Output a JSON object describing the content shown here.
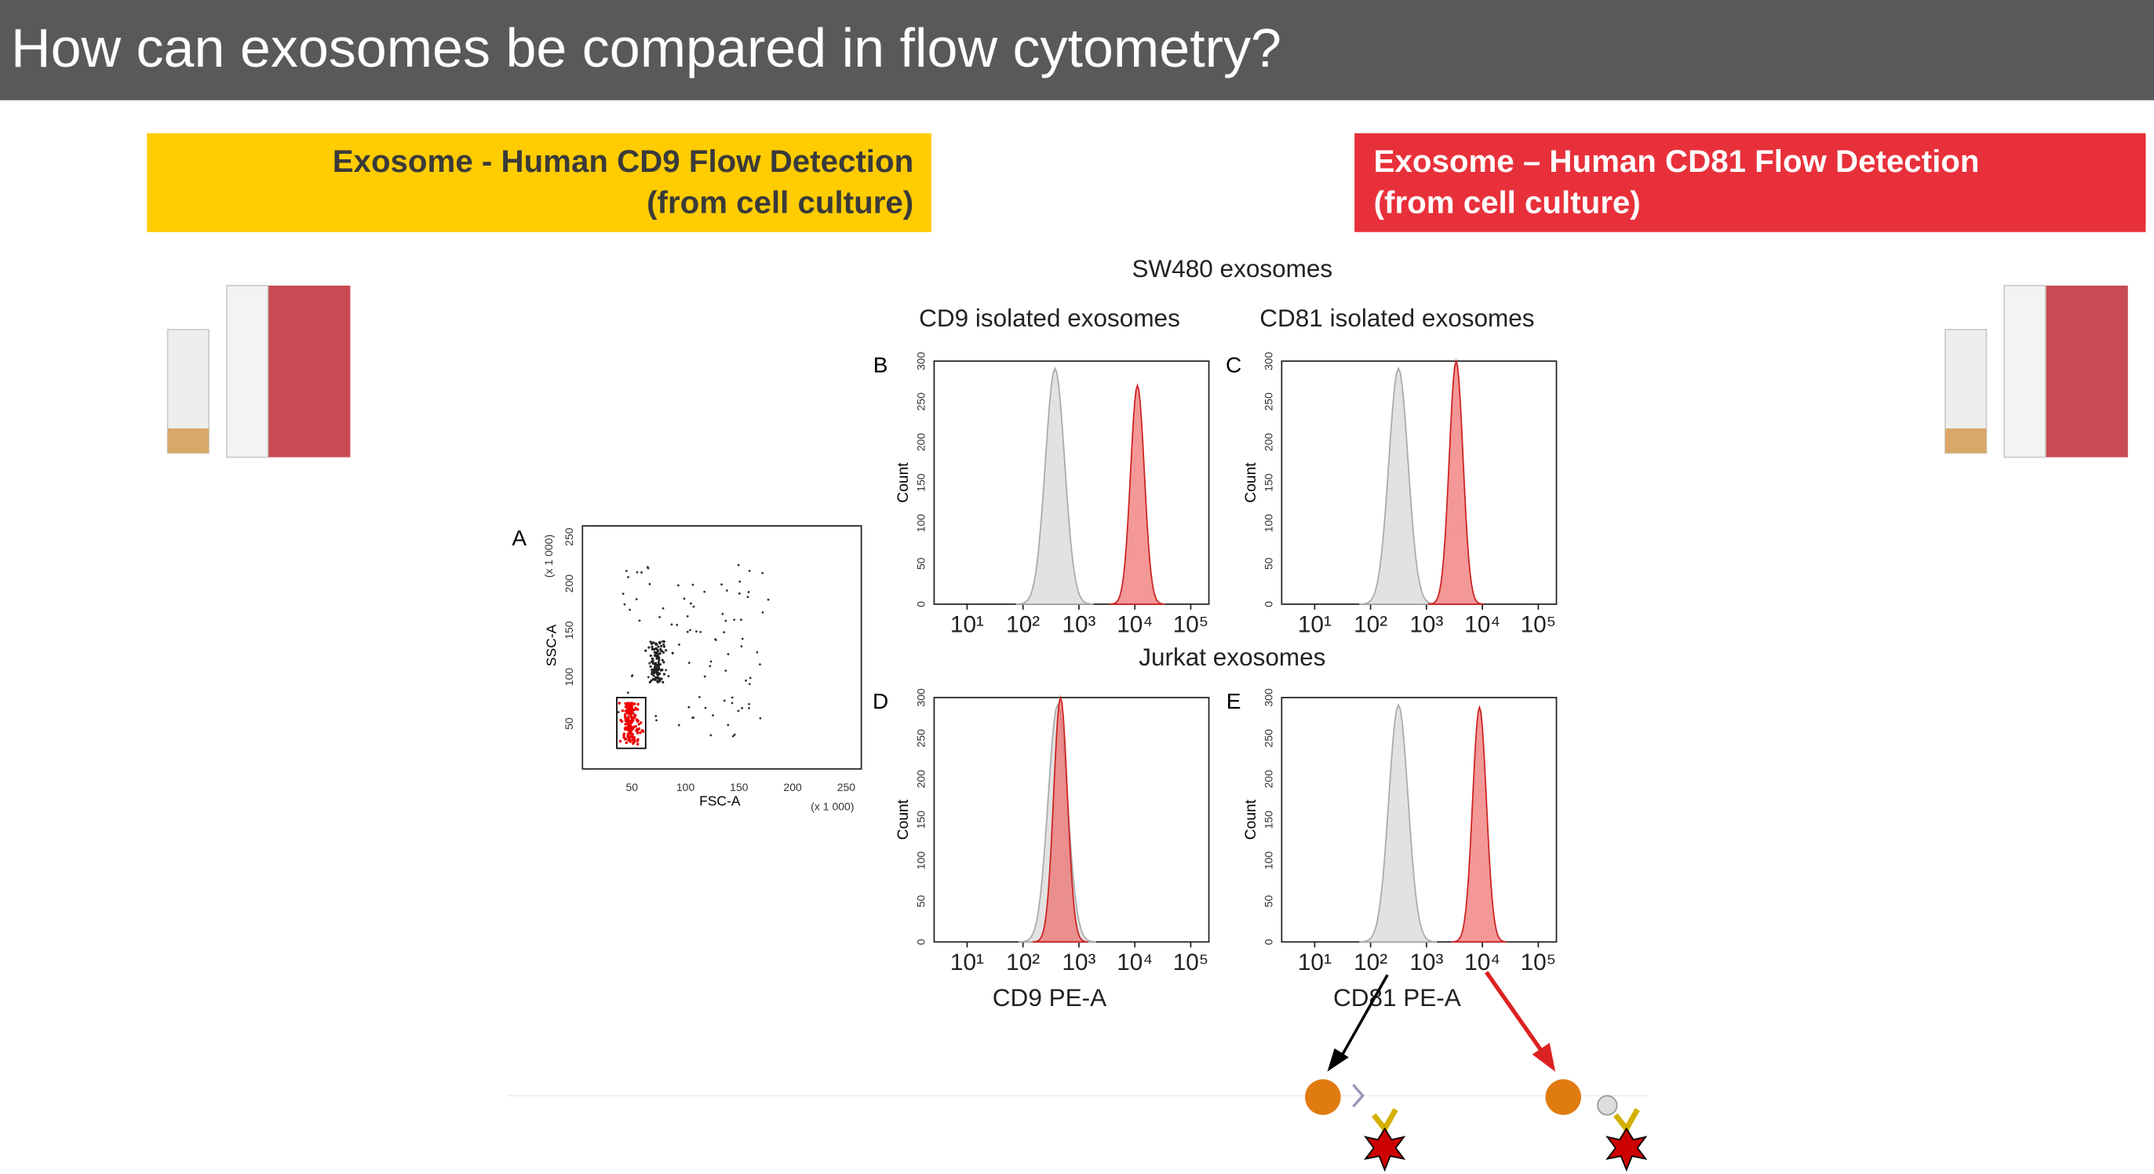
{
  "header": {
    "title": "How can exosomes be compared in flow cytometry?"
  },
  "banners": [
    {
      "lines": [
        "Exosome - Human CD9 Flow Detection",
        "(from cell culture)"
      ]
    },
    {
      "lines": [
        "Exosome – Human CD81 Flow Detection",
        "(from cell culture)"
      ]
    }
  ],
  "figure": {
    "title": "SW480 exosomes",
    "second_title": "Jurkat exosomes",
    "columns": [
      "CD9 isolated exosomes",
      "CD81 isolated exosomes"
    ],
    "x_labels": [
      "CD9 PE-A",
      "CD81 PE-A"
    ],
    "panel_a": {
      "letter": "A",
      "x_label": "FSC-A",
      "y_label": "SSC-A",
      "x_scale": "(x 1 000)",
      "y_scale": "(x 1 000)",
      "x_ticks": [
        "50",
        "100",
        "150",
        "200",
        "250"
      ],
      "y_ticks": [
        "50",
        "100",
        "150",
        "200",
        "250"
      ]
    },
    "histograms": [
      {
        "letter": "B",
        "y_label": "Count"
      },
      {
        "letter": "C",
        "y_label": "Count"
      },
      {
        "letter": "D",
        "y_label": "Count"
      },
      {
        "letter": "E",
        "y_label": "Count"
      }
    ],
    "hist_y_ticks": [
      "0",
      "50",
      "100",
      "150",
      "200",
      "250",
      "300"
    ],
    "hist_x_ticks": [
      "10¹",
      "10²",
      "10³",
      "10⁴",
      "10⁵"
    ]
  }
}
